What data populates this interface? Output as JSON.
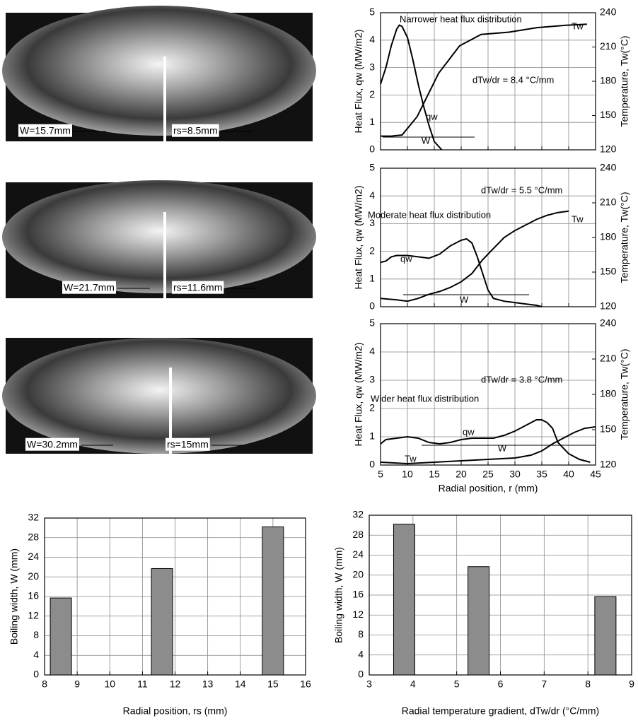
{
  "photos": [
    {
      "labels": [
        "W=15.7mm",
        "rs=8.5mm"
      ]
    },
    {
      "labels": [
        "W=21.7mm",
        "rs=11.6mm"
      ]
    },
    {
      "labels": [
        "W=30.2mm",
        "rs=15mm"
      ]
    }
  ],
  "chart_data": [
    {
      "type": "line",
      "ylabel": "Heat Flux, qw (MW/m2)",
      "y2label": "Temperature, Tw(°C)",
      "xlim": [
        5,
        45
      ],
      "xticks": [
        5,
        10,
        15,
        20,
        25,
        30,
        35,
        40,
        45
      ],
      "show_xtick_labels": false,
      "ylim": [
        0,
        5
      ],
      "yticks": [
        0,
        1,
        2,
        3,
        4,
        5
      ],
      "y2lim": [
        120,
        240
      ],
      "y2ticks": [
        120,
        150,
        180,
        210,
        240
      ],
      "grid": true,
      "annotations": [
        "Narrower heat flux distribution",
        "Tw",
        "dTw/dr = 8.4 °C/mm",
        "qw",
        "W"
      ],
      "series": [
        {
          "name": "qw",
          "color": "#000000",
          "x": [
            5,
            6,
            7,
            8,
            8.5,
            9,
            10,
            11,
            12,
            13,
            14,
            15,
            16.4
          ],
          "values": [
            2.4,
            3.0,
            3.8,
            4.4,
            4.55,
            4.5,
            4.1,
            3.3,
            2.4,
            1.6,
            0.9,
            0.3,
            0
          ]
        },
        {
          "name": "Tw",
          "color": "#000000",
          "axis": "y2",
          "x": [
            5,
            7,
            9,
            11.8,
            15.8,
            19.7,
            23.7,
            28.9,
            34.2,
            39.5,
            43.4
          ],
          "values": [
            132,
            132,
            133,
            149,
            187,
            211,
            221,
            223,
            227,
            229,
            230
          ]
        }
      ]
    },
    {
      "type": "line",
      "ylabel": "Heat Flux, qw (MW/m2)",
      "y2label": "Temperature, Tw(°C)",
      "xlim": [
        5,
        45
      ],
      "xticks": [
        5,
        10,
        15,
        20,
        25,
        30,
        35,
        40,
        45
      ],
      "show_xtick_labels": false,
      "ylim": [
        0,
        5
      ],
      "yticks": [
        0,
        1,
        2,
        3,
        4,
        5
      ],
      "y2lim": [
        120,
        240
      ],
      "y2ticks": [
        120,
        150,
        180,
        210,
        240
      ],
      "grid": true,
      "annotations": [
        "dTw/dr = 5.5 °C/mm",
        "Moderate heat flux distribution",
        "Tw",
        "qw",
        "W"
      ],
      "series": [
        {
          "name": "qw",
          "color": "#000000",
          "x": [
            5,
            6,
            7,
            8,
            10,
            12,
            14,
            16,
            18,
            20,
            21,
            22,
            23,
            24,
            25,
            26,
            28,
            30,
            32,
            34,
            35
          ],
          "values": [
            1.6,
            1.65,
            1.8,
            1.85,
            1.85,
            1.8,
            1.75,
            1.9,
            2.2,
            2.4,
            2.45,
            2.3,
            1.8,
            1.2,
            0.6,
            0.3,
            0.2,
            0.15,
            0.1,
            0.05,
            0
          ]
        },
        {
          "name": "Tw",
          "color": "#000000",
          "axis": "y2",
          "x": [
            5,
            8,
            10,
            12,
            14,
            16,
            18,
            20,
            22,
            24,
            26,
            28,
            30,
            32,
            34,
            36,
            38,
            40
          ],
          "values": [
            127.2,
            126,
            124.8,
            127.2,
            130.8,
            133.2,
            136.8,
            141.6,
            148.8,
            160.8,
            170.4,
            180,
            186,
            190.8,
            195.6,
            199.2,
            201.6,
            202.8
          ]
        }
      ]
    },
    {
      "type": "line",
      "ylabel": "Heat Flux, qw (MW/m2)",
      "y2label": "Temperature, Tw(°C)",
      "xlabel": "Radial position, r (mm)",
      "xlim": [
        5,
        45
      ],
      "xticks": [
        5,
        10,
        15,
        20,
        25,
        30,
        35,
        40,
        45
      ],
      "show_xtick_labels": true,
      "ylim": [
        0,
        5
      ],
      "yticks": [
        0,
        1,
        2,
        3,
        4,
        5
      ],
      "y2lim": [
        120,
        240
      ],
      "y2ticks": [
        120,
        150,
        180,
        210,
        240
      ],
      "grid": true,
      "annotations": [
        "dTw/dr = 3.8 °C/mm",
        "Wider heat flux distribution",
        "qw",
        "Tw",
        "W"
      ],
      "series": [
        {
          "name": "qw",
          "color": "#000000",
          "x": [
            5,
            6,
            8,
            10,
            12,
            14,
            16,
            18,
            20,
            22,
            24,
            26,
            28,
            30,
            32,
            34,
            35,
            36,
            37,
            38,
            40,
            42,
            44
          ],
          "values": [
            0.75,
            0.9,
            0.95,
            1.0,
            0.95,
            0.8,
            0.75,
            0.8,
            0.9,
            0.95,
            0.95,
            0.95,
            1.05,
            1.2,
            1.4,
            1.6,
            1.6,
            1.5,
            1.3,
            0.8,
            0.4,
            0.2,
            0.1
          ]
        },
        {
          "name": "Tw",
          "color": "#000000",
          "axis": "y2",
          "x": [
            5,
            10,
            15,
            20,
            25,
            30,
            33,
            35,
            37,
            39,
            41,
            43,
            45
          ],
          "values": [
            122.4,
            121.2,
            122.4,
            123.6,
            124.8,
            126,
            128.4,
            132,
            138,
            142.8,
            147.6,
            151.2,
            152.4
          ]
        }
      ]
    },
    {
      "type": "bar",
      "ylabel": "Boiling width, W (mm)",
      "xlabel": "Radial position, rs (mm)",
      "x": [
        8.5,
        11.6,
        15
      ],
      "values": [
        15.7,
        21.7,
        30.2
      ],
      "color": "#8c8c8c",
      "xlim": [
        8,
        16
      ],
      "xticks": [
        8,
        9,
        10,
        11,
        12,
        13,
        14,
        15,
        16
      ],
      "ylim": [
        0,
        32
      ],
      "yticks": [
        0,
        4,
        8,
        12,
        16,
        20,
        24,
        28,
        32
      ],
      "grid": true
    },
    {
      "type": "bar",
      "ylabel": "Boiling width, W (mm)",
      "xlabel": "Radial temperature gradient, dTw/dr (°C/mm)",
      "x": [
        3.8,
        5.5,
        8.4
      ],
      "values": [
        30.2,
        21.7,
        15.7
      ],
      "color": "#8c8c8c",
      "xlim": [
        3,
        9
      ],
      "xticks": [
        3,
        4,
        5,
        6,
        7,
        8,
        9
      ],
      "ylim": [
        0,
        32
      ],
      "yticks": [
        0,
        4,
        8,
        12,
        16,
        20,
        24,
        28,
        32
      ],
      "grid": true
    }
  ]
}
